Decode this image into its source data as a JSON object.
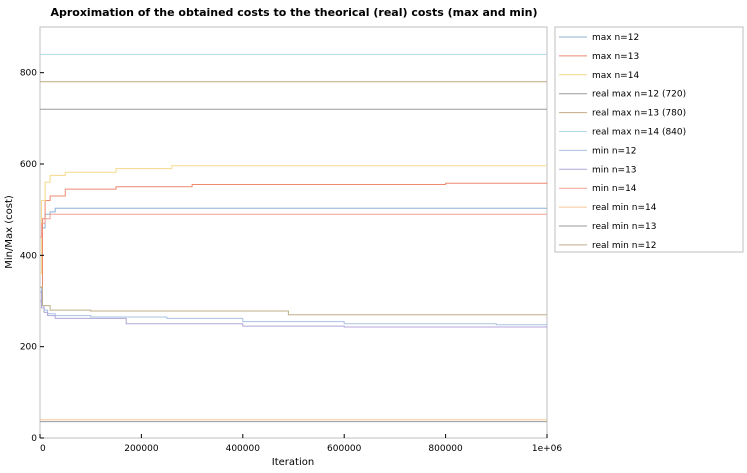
{
  "chart_data": {
    "type": "line",
    "title": "Aproximation of the obtained costs to the theorical (real) costs (max and min)",
    "xlabel": "Iteration",
    "ylabel": "Min/Max (cost)",
    "xlim": [
      0,
      1000000
    ],
    "ylim": [
      0,
      900
    ],
    "x_ticks": [
      0,
      200000,
      400000,
      600000,
      800000,
      1000000
    ],
    "x_tick_labels": [
      "0",
      "200000",
      "400000",
      "600000",
      "800000",
      "1e+06"
    ],
    "y_ticks": [
      0,
      200,
      400,
      600,
      800
    ],
    "y_tick_labels": [
      "0",
      "200",
      "400",
      "600",
      "800"
    ],
    "grid": false,
    "legend_position": "outside-right",
    "series": [
      {
        "name": "max n=12",
        "color": "#8fb0d6",
        "x": [
          0,
          5000,
          10000,
          20000,
          30000,
          1000000
        ],
        "y": [
          300,
          460,
          490,
          495,
          503,
          503
        ]
      },
      {
        "name": "max n=13",
        "color": "#ee8a72",
        "x": [
          0,
          5000,
          10000,
          20000,
          50000,
          150000,
          300000,
          700000,
          800000,
          1000000
        ],
        "y": [
          330,
          480,
          520,
          530,
          545,
          550,
          555,
          555,
          558,
          560
        ]
      },
      {
        "name": "max n=14",
        "color": "#f6d98a",
        "x": [
          0,
          3000,
          10000,
          20000,
          50000,
          150000,
          260000,
          1000000
        ],
        "y": [
          360,
          520,
          560,
          575,
          582,
          590,
          596,
          596
        ]
      },
      {
        "name": "real max n=12 (720)",
        "color": "#9b9b9b",
        "x": [
          0,
          1000000
        ],
        "y": [
          720,
          720
        ]
      },
      {
        "name": "real max n=13 (780)",
        "color": "#c2a982",
        "x": [
          0,
          1000000
        ],
        "y": [
          780,
          780
        ]
      },
      {
        "name": "real max n=14 (840)",
        "color": "#aed8e6",
        "x": [
          0,
          1000000
        ],
        "y": [
          840,
          840
        ]
      },
      {
        "name": "min n=12",
        "color": "#a8c3e3",
        "x": [
          0,
          3000,
          8000,
          15000,
          30000,
          100000,
          250000,
          400000,
          600000,
          900000,
          1000000
        ],
        "y": [
          330,
          290,
          280,
          272,
          268,
          265,
          262,
          255,
          250,
          248,
          245
        ]
      },
      {
        "name": "min n=13",
        "color": "#b1a6d9",
        "x": [
          0,
          3000,
          8000,
          15000,
          30000,
          170000,
          400000,
          600000,
          1000000
        ],
        "y": [
          320,
          285,
          275,
          268,
          262,
          250,
          245,
          243,
          242
        ]
      },
      {
        "name": "min n=14",
        "color": "#f3a293",
        "x": [
          0,
          3000,
          10000,
          20000,
          1000000
        ],
        "y": [
          440,
          470,
          480,
          490,
          490
        ]
      },
      {
        "name": "real min n=14",
        "color": "#f7c89a",
        "x": [
          0,
          1000000
        ],
        "y": [
          40,
          40
        ]
      },
      {
        "name": "real min n=13",
        "color": "#9a9a9a",
        "x": [
          0,
          1000000
        ],
        "y": [
          36,
          36
        ]
      },
      {
        "name": "real min n=12",
        "color": "#bfae88",
        "x": [
          0,
          5000,
          20000,
          100000,
          300000,
          490000,
          1000000
        ],
        "y": [
          330,
          290,
          280,
          278,
          278,
          270,
          270
        ]
      }
    ]
  }
}
